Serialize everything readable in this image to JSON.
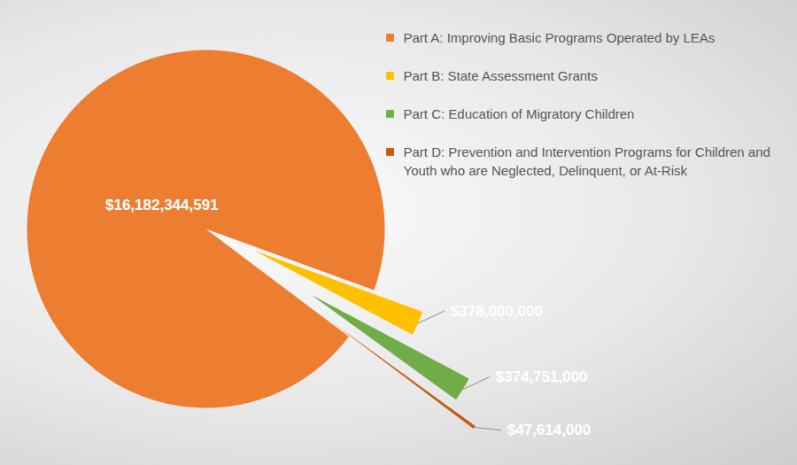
{
  "chart_data": {
    "type": "pie",
    "categories": [
      "Part A: Improving Basic Programs Operated by LEAs",
      "Part B: State Assessment Grants",
      "Part C: Education of Migratory Children",
      "Part D: Prevention and Intervention Programs for Children and Youth who are Neglected, Delinquent, or At-Risk"
    ],
    "values": [
      16182344591,
      378000000,
      374751000,
      47614000
    ],
    "value_labels": [
      "$16,182,344,591",
      "$378,000,000",
      "$374,751,000",
      "$47,614,000"
    ],
    "colors": [
      "#ED7D31",
      "#FFC000",
      "#70AD47",
      "#C55A11"
    ],
    "data_labels": true,
    "legend": "top-right"
  }
}
